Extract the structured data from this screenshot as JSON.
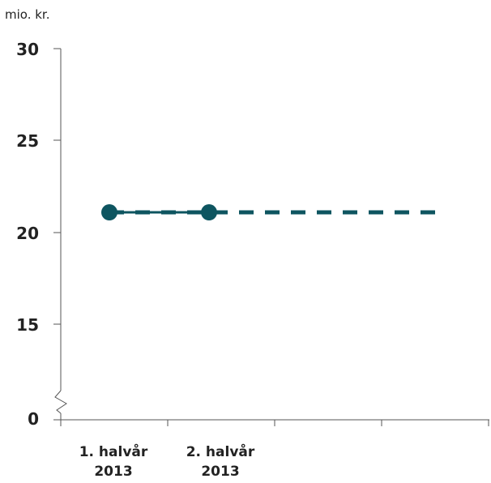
{
  "chart_data": {
    "type": "line",
    "unit_label": "mio. kr.",
    "y_ticks": [
      "30",
      "25",
      "20",
      "15",
      "0"
    ],
    "ylim": [
      0,
      30
    ],
    "axis_break": true,
    "categories": [
      {
        "line1": "1. halvår",
        "line2": "2013"
      },
      {
        "line1": "2. halvår",
        "line2": "2013"
      }
    ],
    "series": [
      {
        "style": "solid-with-markers",
        "color": "#0e5560",
        "values": [
          21.1,
          21.1
        ]
      },
      {
        "style": "dashed",
        "color": "#0e5560",
        "values": [
          21.1,
          21.1
        ],
        "extends_to_end": true
      }
    ],
    "grid": false
  }
}
